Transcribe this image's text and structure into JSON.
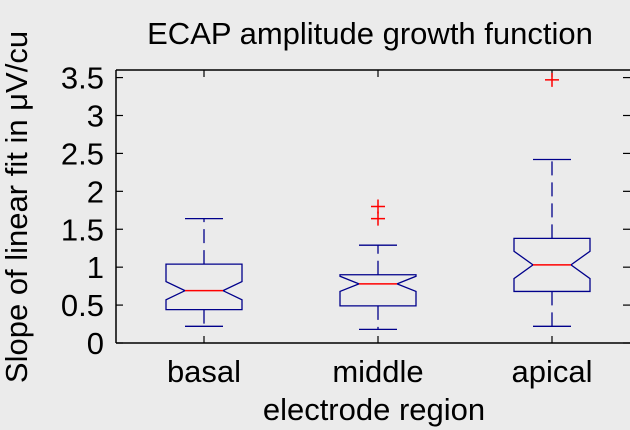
{
  "chart_data": {
    "type": "box",
    "title": "ECAP amplitude growth function",
    "xlabel": "electrode region",
    "ylabel": "Slope of linear fit in μV/cu",
    "ylim": [
      0,
      3.6
    ],
    "yticks": [
      0,
      0.5,
      1,
      1.5,
      2,
      2.5,
      3,
      3.5
    ],
    "ytick_labels": [
      "0",
      "0.5",
      "1",
      "1.5",
      "2",
      "2.5",
      "3",
      "3.5"
    ],
    "categories": [
      "basal",
      "middle",
      "apical"
    ],
    "notched": true,
    "grid": false,
    "colors": {
      "box": "#00008b",
      "median": "#ff0000",
      "outlier": "#ff0000",
      "axis": "#000000",
      "background": "#ebebeb"
    },
    "boxes": [
      {
        "category": "basal",
        "whisker_low": 0.22,
        "q1": 0.44,
        "median": 0.69,
        "q3": 1.04,
        "whisker_high": 1.64,
        "notch_low": 0.57,
        "notch_high": 0.81,
        "outliers": []
      },
      {
        "category": "middle",
        "whisker_low": 0.18,
        "q1": 0.49,
        "median": 0.78,
        "q3": 0.9,
        "whisker_high": 1.29,
        "notch_low": 0.68,
        "notch_high": 0.88,
        "outliers": [
          1.64,
          1.8
        ]
      },
      {
        "category": "apical",
        "whisker_low": 0.22,
        "q1": 0.68,
        "median": 1.03,
        "q3": 1.38,
        "whisker_high": 2.42,
        "notch_low": 0.85,
        "notch_high": 1.21,
        "outliers": [
          3.47
        ]
      }
    ]
  }
}
